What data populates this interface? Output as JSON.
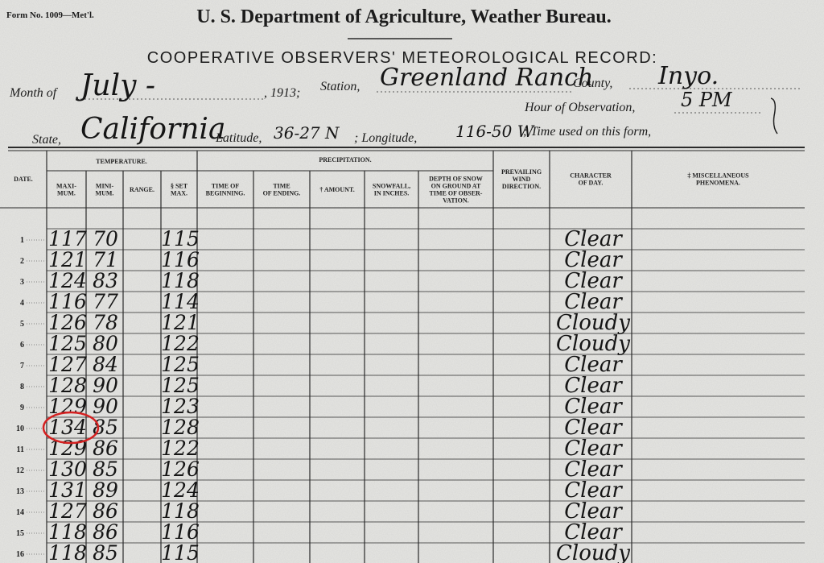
{
  "header": {
    "form_number": "Form No. 1009—Met'l.",
    "department": "U. S. Department of Agriculture, Weather Bureau.",
    "title": "COOPERATIVE OBSERVERS' METEOROLOGICAL RECORD:",
    "month": {
      "label": "Month of",
      "value": "July -"
    },
    "year": ", 1913;",
    "station": {
      "label": "Station,",
      "value": "Greenland Ranch"
    },
    "county": {
      "label": "County,",
      "value": "Inyo."
    },
    "hour": {
      "label": "Hour of Observation,",
      "value": "5 PM"
    },
    "state": {
      "label": "State,",
      "value": "California"
    },
    "latitude": {
      "label": "Latitude,",
      "value": "36-27 N"
    },
    "longitude": {
      "label": "; Longitude,",
      "value": "116-50 W"
    },
    "time_used": {
      "label": "; Time used on this form,"
    }
  },
  "table": {
    "groups": {
      "temperature": "TEMPERATURE.",
      "precipitation": "PRECIPITATION."
    },
    "columns": [
      {
        "header": [
          "DATE."
        ]
      },
      {
        "header": [
          "MAXI-",
          "MUM."
        ]
      },
      {
        "header": [
          "MINI-",
          "MUM."
        ]
      },
      {
        "header": [
          "RANGE."
        ]
      },
      {
        "header": [
          "§ SET",
          "MAX."
        ]
      },
      {
        "header": [
          "TIME OF",
          "BEGINNING."
        ]
      },
      {
        "header": [
          "TIME",
          "OF ENDING."
        ]
      },
      {
        "header": [
          "† AMOUNT."
        ]
      },
      {
        "header": [
          "SNOWFALL,",
          "IN INCHES."
        ]
      },
      {
        "header": [
          "DEPTH OF SNOW",
          "ON GROUND AT",
          "TIME OF OBSER-",
          "VATION."
        ]
      },
      {
        "header": [
          "PREVAILING",
          "WIND",
          "DIRECTION."
        ]
      },
      {
        "header": [
          "CHARACTER",
          "OF DAY."
        ]
      },
      {
        "header": [
          "‡ MISCELLANEOUS",
          "PHENOMENA."
        ]
      }
    ],
    "rows": [
      {
        "date": 1,
        "maximum": 117,
        "minimum": 70,
        "set_max": 115,
        "character": "Clear"
      },
      {
        "date": 2,
        "maximum": 121,
        "minimum": 71,
        "set_max": 116,
        "character": "Clear"
      },
      {
        "date": 3,
        "maximum": 124,
        "minimum": 83,
        "set_max": 118,
        "character": "Clear"
      },
      {
        "date": 4,
        "maximum": 116,
        "minimum": 77,
        "set_max": 114,
        "character": "Clear"
      },
      {
        "date": 5,
        "maximum": 126,
        "minimum": 78,
        "set_max": 121,
        "character": "Cloudy"
      },
      {
        "date": 6,
        "maximum": 125,
        "minimum": 80,
        "set_max": 122,
        "character": "Cloudy"
      },
      {
        "date": 7,
        "maximum": 127,
        "minimum": 84,
        "set_max": 125,
        "character": "Clear"
      },
      {
        "date": 8,
        "maximum": 128,
        "minimum": 90,
        "set_max": 125,
        "character": "Clear"
      },
      {
        "date": 9,
        "maximum": 129,
        "minimum": 90,
        "set_max": 123,
        "character": "Clear"
      },
      {
        "date": 10,
        "maximum": 134,
        "minimum": 85,
        "set_max": 128,
        "character": "Clear"
      },
      {
        "date": 11,
        "maximum": 129,
        "minimum": 86,
        "set_max": 122,
        "character": "Clear"
      },
      {
        "date": 12,
        "maximum": 130,
        "minimum": 85,
        "set_max": 126,
        "character": "Clear"
      },
      {
        "date": 13,
        "maximum": 131,
        "minimum": 89,
        "set_max": 124,
        "character": "Clear"
      },
      {
        "date": 14,
        "maximum": 127,
        "minimum": 86,
        "set_max": 118,
        "character": "Clear"
      },
      {
        "date": 15,
        "maximum": 118,
        "minimum": 86,
        "set_max": 116,
        "character": "Clear"
      },
      {
        "date": 16,
        "maximum": 118,
        "minimum": 85,
        "set_max": 115,
        "character": "Cloudy"
      }
    ],
    "highlighted_row": 9
  }
}
